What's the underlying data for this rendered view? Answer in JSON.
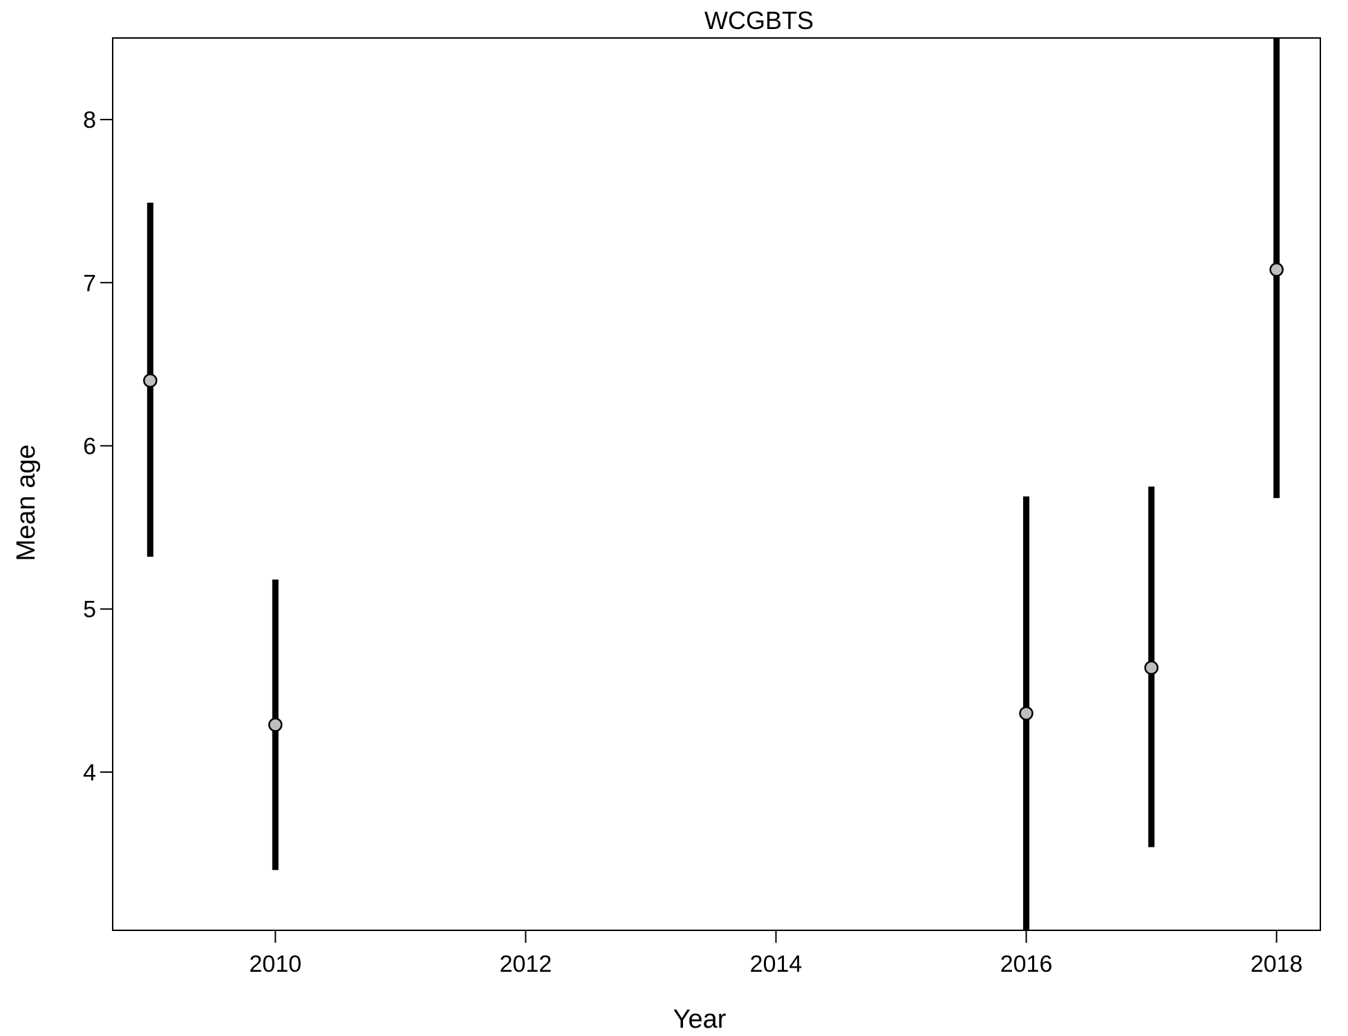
{
  "chart_data": {
    "type": "scatter",
    "title": "WCGBTS",
    "xlabel": "Year",
    "ylabel": "Mean age",
    "xlim": [
      2008.7,
      2018.35
    ],
    "ylim": [
      3.03,
      8.5
    ],
    "xticks": [
      2010,
      2012,
      2014,
      2016,
      2018
    ],
    "yticks": [
      4,
      5,
      6,
      7,
      8
    ],
    "grid": false,
    "legend": "none",
    "series": [
      {
        "x": [
          2009,
          2010,
          2016,
          2017,
          2018
        ],
        "y": [
          6.4,
          4.29,
          4.36,
          4.64,
          7.08
        ],
        "lower": [
          5.32,
          3.4,
          3.03,
          3.54,
          5.68
        ],
        "upper": [
          7.49,
          5.18,
          5.69,
          5.75,
          8.5
        ]
      }
    ],
    "colors": {
      "point_fill": "#bebebe",
      "point_stroke": "#000000",
      "interval": "#000000"
    }
  }
}
